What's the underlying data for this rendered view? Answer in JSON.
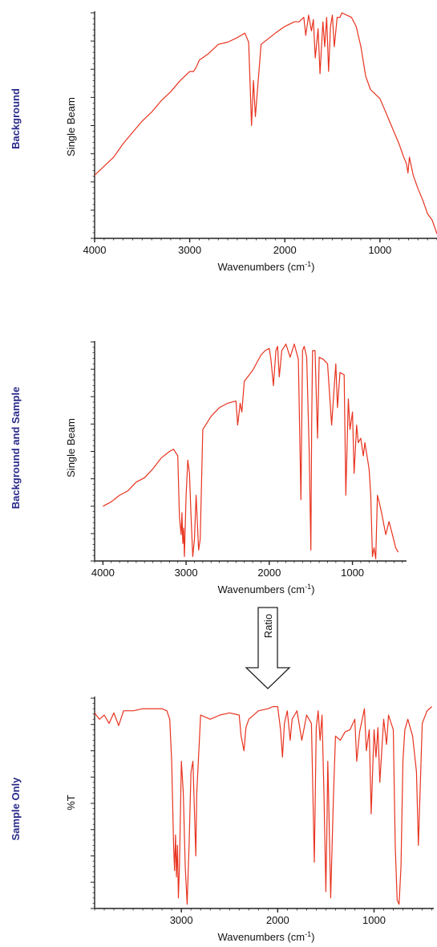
{
  "chart_data": [
    {
      "type": "line",
      "panel_title": "Background",
      "ylabel": "Single Beam",
      "xlabel": "Wavenumbers (cm",
      "xlabel_sup": "-1",
      "xlabel_end": ")",
      "xlim": [
        4000,
        400
      ],
      "x_ticks": [
        "4000",
        "3000",
        "2000",
        "1000"
      ],
      "x_tick_values": [
        4000,
        3000,
        2000,
        1000
      ],
      "ylim": [
        0,
        1
      ],
      "series": [
        {
          "x": [
            4000,
            3900,
            3800,
            3700,
            3600,
            3500,
            3400,
            3300,
            3200,
            3100,
            3000,
            2960,
            2930,
            2900,
            2800,
            2700,
            2600,
            2500,
            2420,
            2380,
            2350,
            2330,
            2310,
            2250,
            2100,
            2000,
            1900,
            1850,
            1800,
            1780,
            1750,
            1720,
            1700,
            1680,
            1650,
            1630,
            1600,
            1580,
            1560,
            1540,
            1520,
            1500,
            1480,
            1450,
            1420,
            1400,
            1350,
            1300,
            1250,
            1200,
            1150,
            1100,
            1050,
            1000,
            950,
            900,
            850,
            800,
            750,
            720,
            705,
            690,
            650,
            600,
            550,
            500,
            450,
            400
          ],
          "y": [
            0.28,
            0.32,
            0.36,
            0.42,
            0.47,
            0.52,
            0.56,
            0.61,
            0.65,
            0.7,
            0.74,
            0.74,
            0.76,
            0.79,
            0.82,
            0.86,
            0.87,
            0.89,
            0.91,
            0.87,
            0.5,
            0.7,
            0.54,
            0.86,
            0.91,
            0.94,
            0.96,
            0.96,
            0.98,
            0.9,
            0.99,
            0.92,
            0.97,
            0.8,
            0.93,
            0.73,
            0.96,
            0.85,
            0.98,
            0.74,
            0.94,
            0.99,
            0.85,
            0.98,
            0.98,
            1.0,
            0.99,
            0.98,
            0.94,
            0.85,
            0.72,
            0.66,
            0.64,
            0.62,
            0.57,
            0.52,
            0.47,
            0.42,
            0.36,
            0.33,
            0.29,
            0.36,
            0.28,
            0.22,
            0.17,
            0.11,
            0.08,
            0.02
          ]
        }
      ]
    },
    {
      "type": "line",
      "panel_title": "Background and Sample",
      "ylabel": "Single Beam",
      "xlabel": "Wavenumbers (cm",
      "xlabel_sup": "-1",
      "xlabel_end": ")",
      "xlim": [
        4100,
        350
      ],
      "x_ticks": [
        "4000",
        "3000",
        "2000",
        "1000"
      ],
      "x_tick_values": [
        4000,
        3000,
        2000,
        1000
      ],
      "ylim": [
        0,
        1
      ],
      "series": [
        {
          "x": [
            4000,
            3900,
            3800,
            3700,
            3600,
            3500,
            3400,
            3300,
            3200,
            3150,
            3100,
            3080,
            3060,
            3050,
            3040,
            3030,
            3020,
            3000,
            2980,
            2960,
            2940,
            2920,
            2900,
            2880,
            2850,
            2830,
            2800,
            2700,
            2600,
            2500,
            2400,
            2380,
            2350,
            2330,
            2300,
            2200,
            2100,
            2050,
            2000,
            1980,
            1950,
            1920,
            1900,
            1880,
            1850,
            1800,
            1750,
            1700,
            1650,
            1620,
            1600,
            1580,
            1550,
            1520,
            1500,
            1490,
            1480,
            1450,
            1420,
            1400,
            1350,
            1300,
            1250,
            1200,
            1180,
            1150,
            1100,
            1080,
            1050,
            1030,
            1000,
            980,
            950,
            930,
            900,
            870,
            850,
            800,
            780,
            760,
            740,
            720,
            700,
            680,
            650,
            600,
            560,
            520,
            480,
            450
          ],
          "y": [
            0.25,
            0.27,
            0.3,
            0.32,
            0.36,
            0.38,
            0.42,
            0.47,
            0.5,
            0.51,
            0.48,
            0.2,
            0.12,
            0.22,
            0.08,
            0.15,
            0.02,
            0.3,
            0.46,
            0.4,
            0.2,
            0.02,
            0.1,
            0.3,
            0.05,
            0.1,
            0.6,
            0.66,
            0.7,
            0.72,
            0.73,
            0.62,
            0.72,
            0.68,
            0.82,
            0.87,
            0.94,
            0.96,
            0.97,
            0.92,
            0.8,
            0.96,
            0.98,
            0.84,
            0.96,
            0.99,
            0.93,
            0.99,
            0.92,
            0.28,
            0.96,
            0.98,
            0.93,
            0.5,
            0.05,
            0.62,
            0.96,
            0.96,
            0.56,
            0.93,
            0.92,
            0.9,
            0.62,
            0.9,
            0.7,
            0.86,
            0.85,
            0.3,
            0.74,
            0.6,
            0.68,
            0.4,
            0.62,
            0.54,
            0.56,
            0.48,
            0.54,
            0.42,
            0.3,
            0.02,
            0.06,
            0.01,
            0.3,
            0.27,
            0.22,
            0.12,
            0.18,
            0.12,
            0.06,
            0.04
          ]
        }
      ]
    },
    {
      "type": "line",
      "panel_title": "Sample Only",
      "ylabel": "%T",
      "xlabel": "Wavenumbers (cm",
      "xlabel_sup": "-1",
      "xlabel_end": ")",
      "xlim": [
        3900,
        380
      ],
      "x_ticks": [
        "3000",
        "2000",
        "1000"
      ],
      "x_tick_values": [
        3000,
        2000,
        1000
      ],
      "ylim": [
        0,
        1
      ],
      "series": [
        {
          "x": [
            3900,
            3850,
            3800,
            3750,
            3700,
            3650,
            3600,
            3500,
            3400,
            3300,
            3200,
            3150,
            3120,
            3100,
            3080,
            3070,
            3060,
            3050,
            3040,
            3030,
            3020,
            3000,
            2980,
            2960,
            2940,
            2920,
            2900,
            2880,
            2860,
            2850,
            2840,
            2800,
            2700,
            2600,
            2500,
            2400,
            2380,
            2350,
            2330,
            2300,
            2200,
            2100,
            2050,
            2000,
            1970,
            1950,
            1930,
            1900,
            1870,
            1850,
            1800,
            1750,
            1700,
            1650,
            1620,
            1600,
            1580,
            1560,
            1540,
            1520,
            1500,
            1490,
            1480,
            1470,
            1450,
            1420,
            1400,
            1350,
            1300,
            1250,
            1200,
            1180,
            1150,
            1100,
            1080,
            1050,
            1030,
            1000,
            980,
            960,
            940,
            900,
            870,
            850,
            800,
            780,
            760,
            740,
            720,
            700,
            680,
            650,
            600,
            560,
            540,
            500,
            450,
            400
          ],
          "y": [
            0.93,
            0.9,
            0.92,
            0.88,
            0.93,
            0.87,
            0.94,
            0.94,
            0.95,
            0.95,
            0.95,
            0.94,
            0.9,
            0.7,
            0.3,
            0.18,
            0.35,
            0.15,
            0.3,
            0.05,
            0.2,
            0.7,
            0.55,
            0.2,
            0.02,
            0.3,
            0.65,
            0.7,
            0.4,
            0.25,
            0.55,
            0.92,
            0.9,
            0.92,
            0.93,
            0.92,
            0.82,
            0.75,
            0.86,
            0.9,
            0.94,
            0.95,
            0.96,
            0.96,
            0.85,
            0.72,
            0.88,
            0.94,
            0.8,
            0.9,
            0.94,
            0.8,
            0.92,
            0.88,
            0.22,
            0.86,
            0.94,
            0.8,
            0.92,
            0.55,
            0.08,
            0.35,
            0.7,
            0.5,
            0.05,
            0.55,
            0.82,
            0.8,
            0.84,
            0.85,
            0.9,
            0.7,
            0.84,
            0.95,
            0.75,
            0.85,
            0.45,
            0.85,
            0.72,
            0.86,
            0.6,
            0.9,
            0.78,
            0.92,
            0.85,
            0.3,
            0.04,
            0.02,
            0.2,
            0.7,
            0.85,
            0.9,
            0.82,
            0.65,
            0.3,
            0.88,
            0.94,
            0.96
          ]
        }
      ]
    }
  ],
  "arrow_label": "Ratio"
}
